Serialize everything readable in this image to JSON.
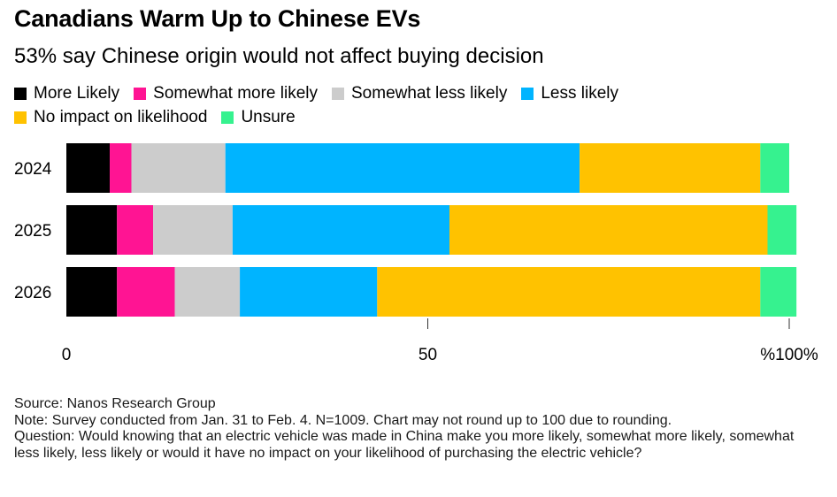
{
  "title": "Canadians Warm Up to Chinese EVs",
  "subtitle": "53% say Chinese origin would not affect buying decision",
  "legend": {
    "rows": [
      [
        {
          "label": "More Likely",
          "color": "#000000"
        },
        {
          "label": "Somewhat more likely",
          "color": "#ff1493"
        },
        {
          "label": "Somewhat less likely",
          "color": "#cccccc"
        },
        {
          "label": "Less likely",
          "color": "#00b4ff"
        }
      ],
      [
        {
          "label": "No impact on likelihood",
          "color": "#ffc200"
        },
        {
          "label": "Unsure",
          "color": "#36f28f"
        }
      ]
    ]
  },
  "chart_data": {
    "type": "bar",
    "orientation": "horizontal",
    "stacked": true,
    "categories": [
      "2024",
      "2025",
      "2026"
    ],
    "series": [
      {
        "name": "More Likely",
        "color": "#000000",
        "values": [
          6,
          7,
          7
        ]
      },
      {
        "name": "Somewhat more likely",
        "color": "#ff1493",
        "values": [
          3,
          5,
          8
        ]
      },
      {
        "name": "Somewhat less likely",
        "color": "#cccccc",
        "values": [
          13,
          11,
          9
        ]
      },
      {
        "name": "Less likely",
        "color": "#00b4ff",
        "values": [
          49,
          30,
          19
        ]
      },
      {
        "name": "No impact on likelihood",
        "color": "#ffc200",
        "values": [
          25,
          44,
          53
        ]
      },
      {
        "name": "Unsure",
        "color": "#36f28f",
        "values": [
          4,
          4,
          5
        ]
      }
    ],
    "xlim": [
      0,
      100
    ],
    "ticks": [
      {
        "value": 0,
        "label": "0"
      },
      {
        "value": 50,
        "label": "50"
      },
      {
        "value": 100,
        "label": "%100%"
      }
    ]
  },
  "notes": {
    "source": "Source: Nanos Research Group",
    "note": "Note: Survey conducted from Jan. 31 to Feb. 4. N=1009. Chart may not round up to 100 due to rounding.",
    "question": "Question: Would knowing that an electric vehicle was made in China make you more likely, somewhat more likely, somewhat less likely, less likely or would it have no impact on your likelihood of purchasing the electric vehicle?"
  }
}
